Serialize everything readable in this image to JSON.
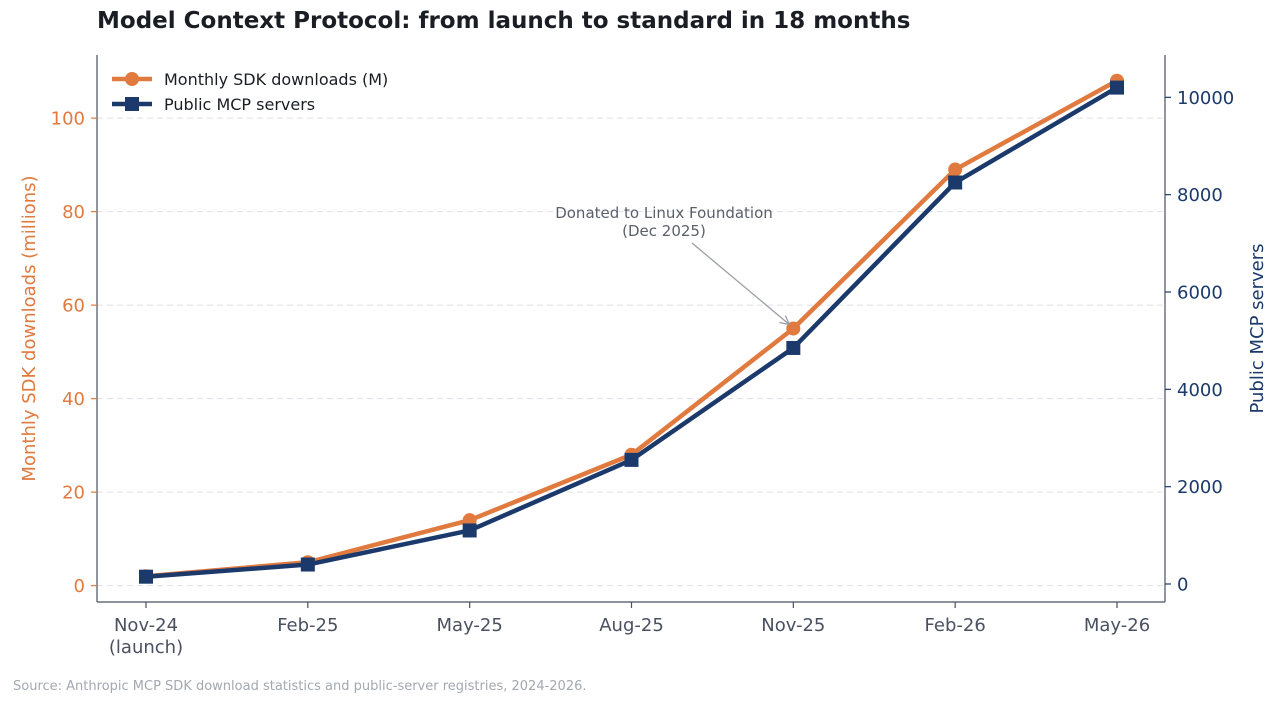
{
  "title": "Model Context Protocol: from launch to standard in 18 months",
  "source": "Source: Anthropic MCP SDK download statistics and public-server registries, 2024-2026.",
  "colors": {
    "downloads": "#e07a3f",
    "servers": "#1b3a6b",
    "axis": "#4a5060",
    "grid": "#dde1e7",
    "annotation": "#5a5f6a"
  },
  "chart_data": {
    "type": "line",
    "categories": [
      "Nov-24\n(launch)",
      "Feb-25",
      "May-25",
      "Aug-25",
      "Nov-25",
      "Feb-26",
      "May-26"
    ],
    "series": [
      {
        "name": "Monthly SDK downloads (M)",
        "axis": "left",
        "marker": "circle",
        "values": [
          2,
          5,
          14,
          28,
          55,
          89,
          108
        ]
      },
      {
        "name": "Public MCP servers",
        "axis": "right",
        "marker": "square",
        "values": [
          150,
          400,
          1100,
          2550,
          4850,
          8250,
          10200
        ]
      }
    ],
    "ylabel": "Monthly SDK downloads (millions)",
    "y2label": "Public MCP servers",
    "ylim": [
      -3.5,
      113.5
    ],
    "y2lim": [
      -370,
      10870
    ],
    "yticks": [
      0,
      20,
      40,
      60,
      80,
      100
    ],
    "y2ticks": [
      0,
      2000,
      4000,
      6000,
      8000,
      10000
    ],
    "grid": true,
    "legend": "top-left",
    "annotation": {
      "text": [
        "Donated to Linux Foundation",
        "(Dec 2025)"
      ],
      "point": {
        "category": "Nov-25",
        "value": 55
      }
    }
  }
}
